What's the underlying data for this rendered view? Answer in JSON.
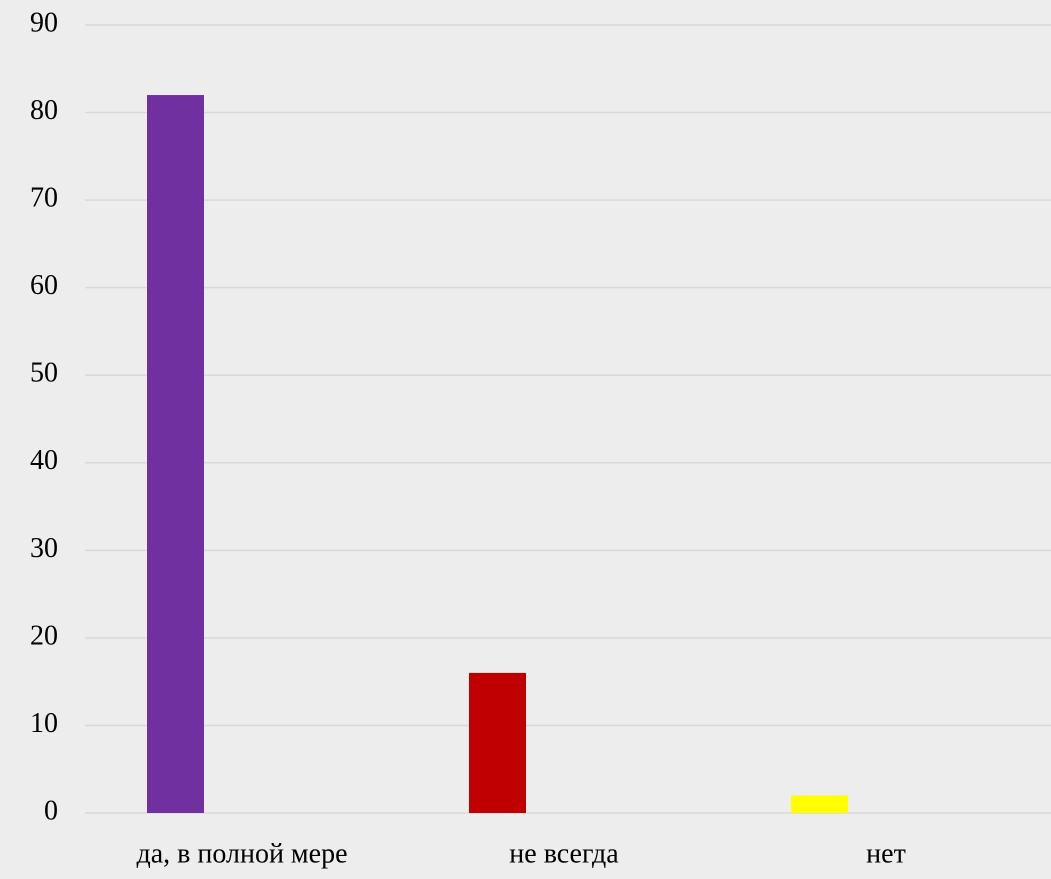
{
  "chart_data": {
    "type": "bar",
    "categories": [
      "да, в полной мере",
      "не всегда",
      "нет"
    ],
    "values": [
      82,
      16,
      2
    ],
    "colors": [
      "#7030a0",
      "#c00000",
      "#ffff00"
    ],
    "ylim": [
      0,
      90
    ],
    "yticks": [
      0,
      10,
      20,
      30,
      40,
      50,
      60,
      70,
      80,
      90
    ],
    "grid": true
  }
}
